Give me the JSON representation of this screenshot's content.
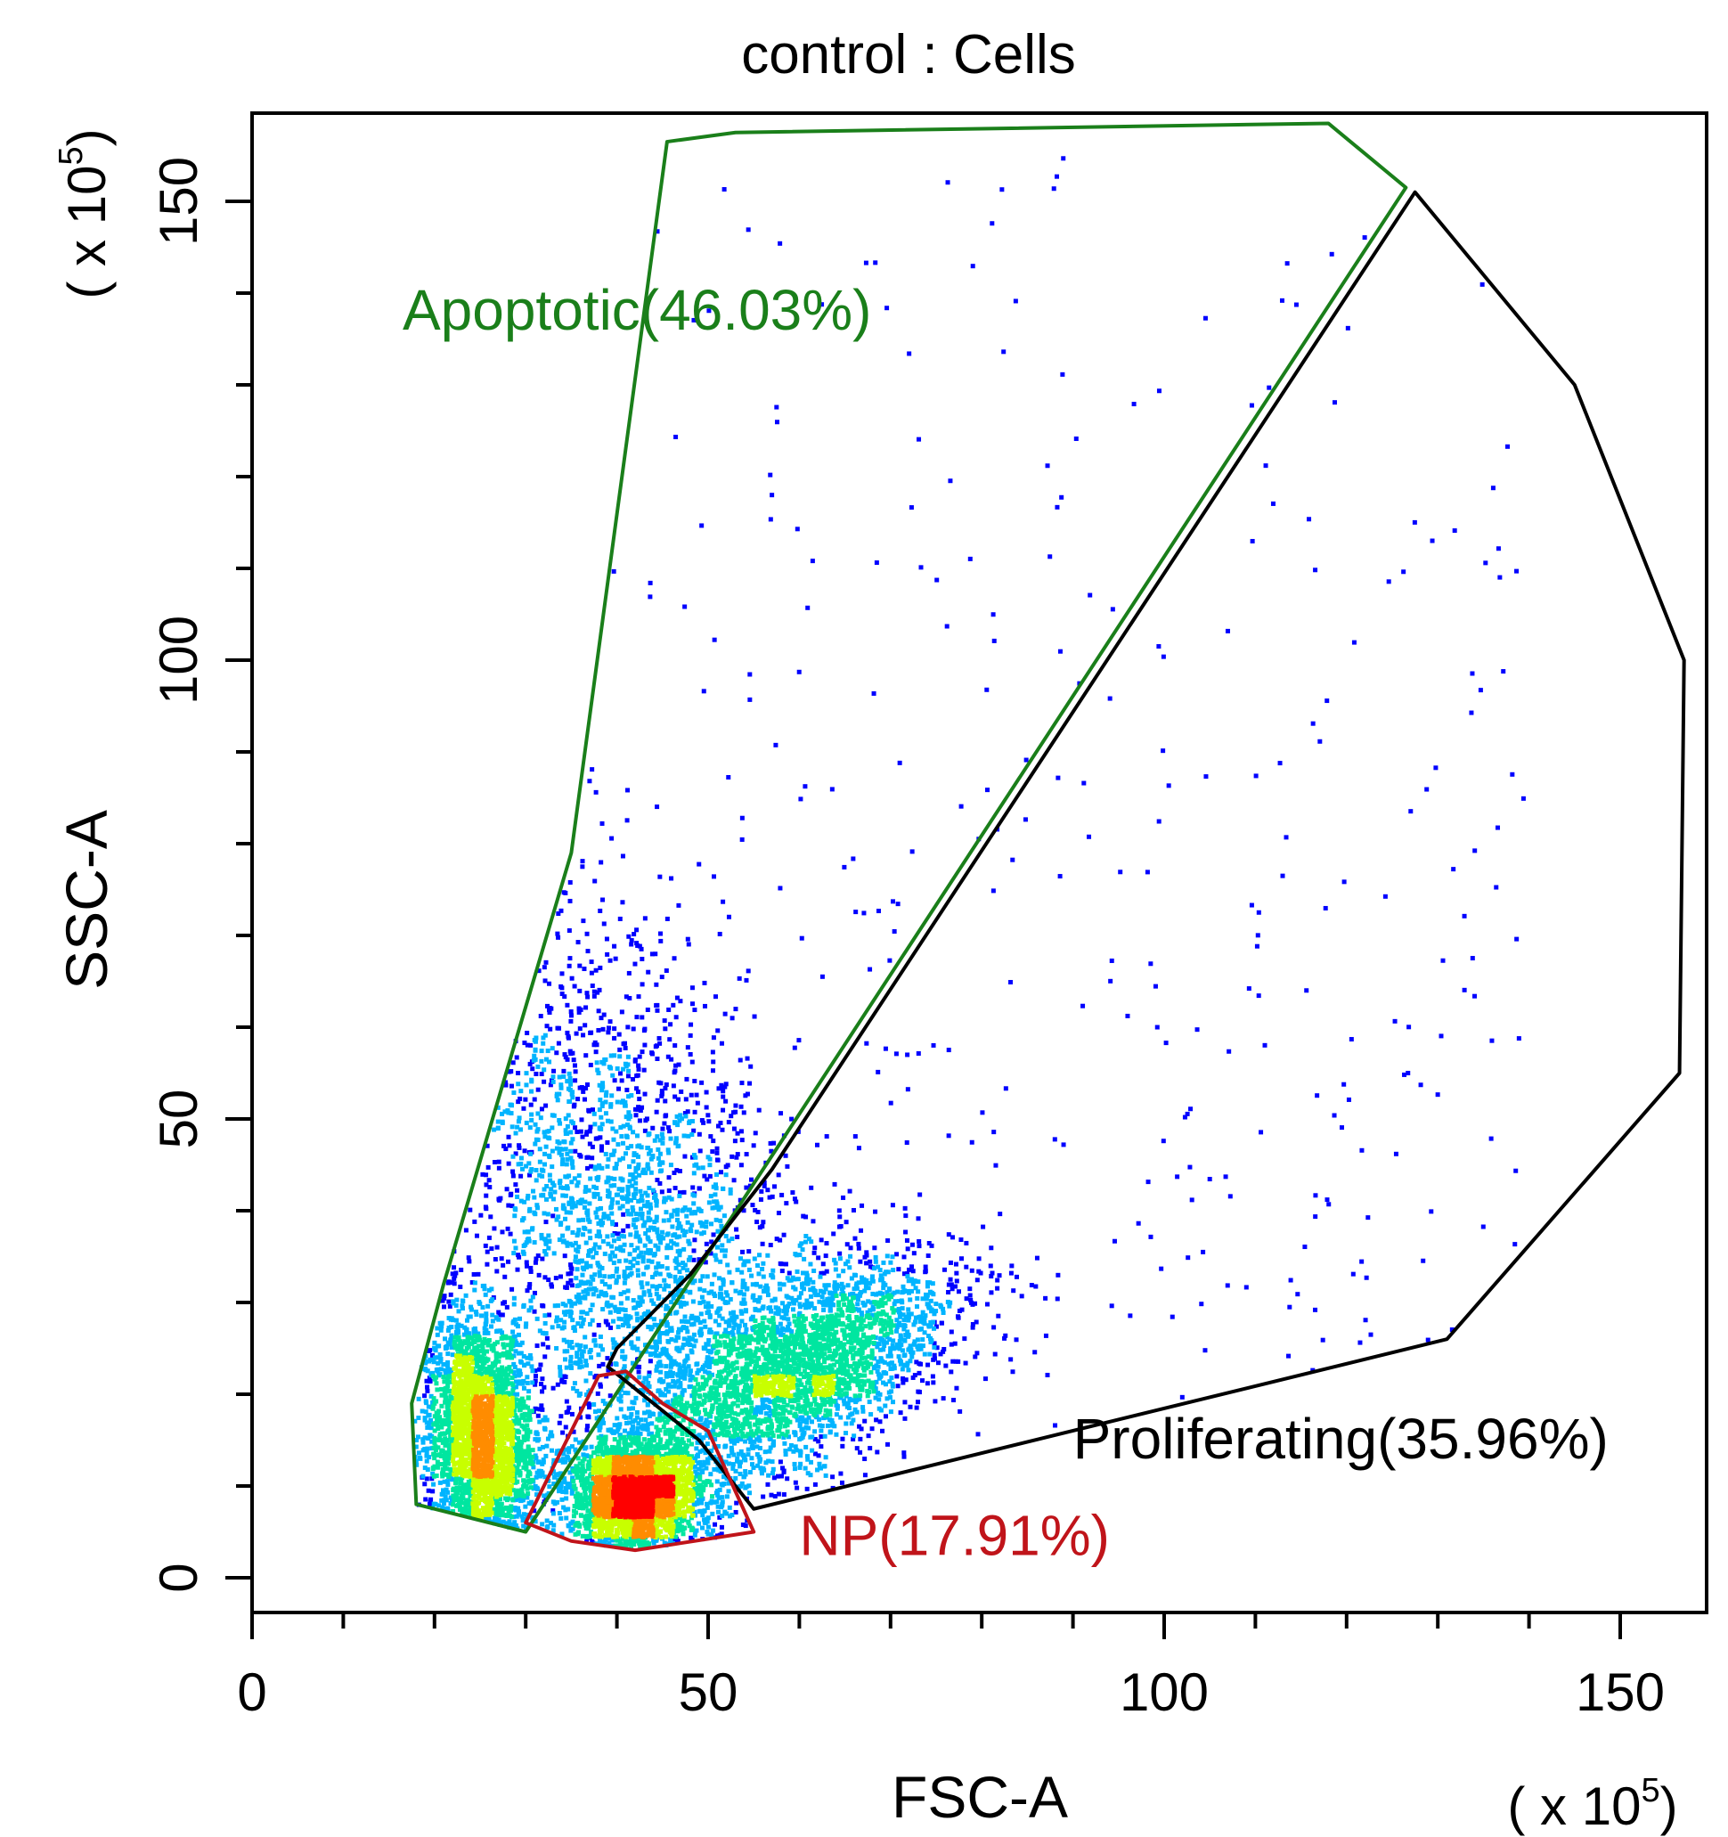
{
  "chart_data": {
    "type": "scatter",
    "title": "control : Cells",
    "xlabel": "FSC-A",
    "ylabel": "SSC-A",
    "x_multiplier": {
      "prefix": "( x 10",
      "exp": "5",
      "suffix": ")"
    },
    "y_multiplier": {
      "prefix": "( x 10",
      "exp": "5",
      "suffix": ")"
    },
    "xlim": [
      0,
      160
    ],
    "ylim": [
      -4,
      160
    ],
    "x_major_ticks": [
      0,
      50,
      100,
      150
    ],
    "x_minor_ticks": [
      10,
      20,
      30,
      40,
      60,
      70,
      80,
      90,
      110,
      120,
      130,
      140
    ],
    "y_major_ticks": [
      0,
      50,
      100,
      150
    ],
    "y_minor_ticks": [
      10,
      20,
      30,
      40,
      60,
      70,
      80,
      90,
      110,
      120,
      130,
      140
    ],
    "gates": [
      {
        "name": "Apoptotic",
        "label": "Apoptotic(46.03%)",
        "percent": 46.03,
        "color": "#1a7f1a",
        "label_anchor": [
          16.5,
          136
        ],
        "points": [
          [
            45.5,
            156.5
          ],
          [
            53,
            157.5
          ],
          [
            118,
            158.5
          ],
          [
            126.5,
            151.5
          ],
          [
            30,
            5
          ],
          [
            18,
            8
          ],
          [
            17.5,
            19
          ],
          [
            21,
            32
          ],
          [
            35,
            79
          ]
        ]
      },
      {
        "name": "Proliferating",
        "label": "Proliferating(35.96%)",
        "percent": 35.96,
        "color": "#000000",
        "label_anchor": [
          90,
          13
        ],
        "points": [
          [
            127.5,
            151
          ],
          [
            145,
            130
          ],
          [
            157,
            100
          ],
          [
            156.5,
            55
          ],
          [
            131,
            26
          ],
          [
            55,
            7.5
          ],
          [
            49,
            15
          ],
          [
            39,
            23
          ],
          [
            40,
            25
          ],
          [
            48,
            33
          ],
          [
            57,
            44.5
          ]
        ]
      },
      {
        "name": "NP",
        "label": "NP(17.91%)",
        "percent": 17.91,
        "color": "#c0141a",
        "label_anchor": [
          60,
          2.5
        ],
        "points": [
          [
            38,
            22
          ],
          [
            41,
            22.5
          ],
          [
            45,
            19
          ],
          [
            50,
            16
          ],
          [
            55,
            5
          ],
          [
            42,
            3
          ],
          [
            35,
            4
          ],
          [
            30,
            6
          ]
        ]
      }
    ],
    "density_clusters": [
      {
        "name": "left-lower",
        "center": [
          25,
          15
        ],
        "sd": [
          3.0,
          7.0
        ],
        "rot_deg": 5,
        "level": "high"
      },
      {
        "name": "np-peak",
        "center": [
          42,
          9
        ],
        "sd": [
          3.5,
          3.0
        ],
        "rot_deg": 0,
        "level": "high"
      },
      {
        "name": "proliferating-band",
        "center": [
          60,
          23
        ],
        "sd": [
          9.0,
          4.5
        ],
        "rot_deg": 28,
        "level": "medium"
      },
      {
        "name": "apoptotic-spread",
        "center": [
          42,
          35
        ],
        "sd": [
          9.0,
          18.0
        ],
        "rot_deg": 20,
        "level": "low"
      }
    ],
    "density_colors": [
      "#0000ff",
      "#00b4ff",
      "#00e6a0",
      "#c8ff00",
      "#ff8c00",
      "#ff0000"
    ]
  }
}
